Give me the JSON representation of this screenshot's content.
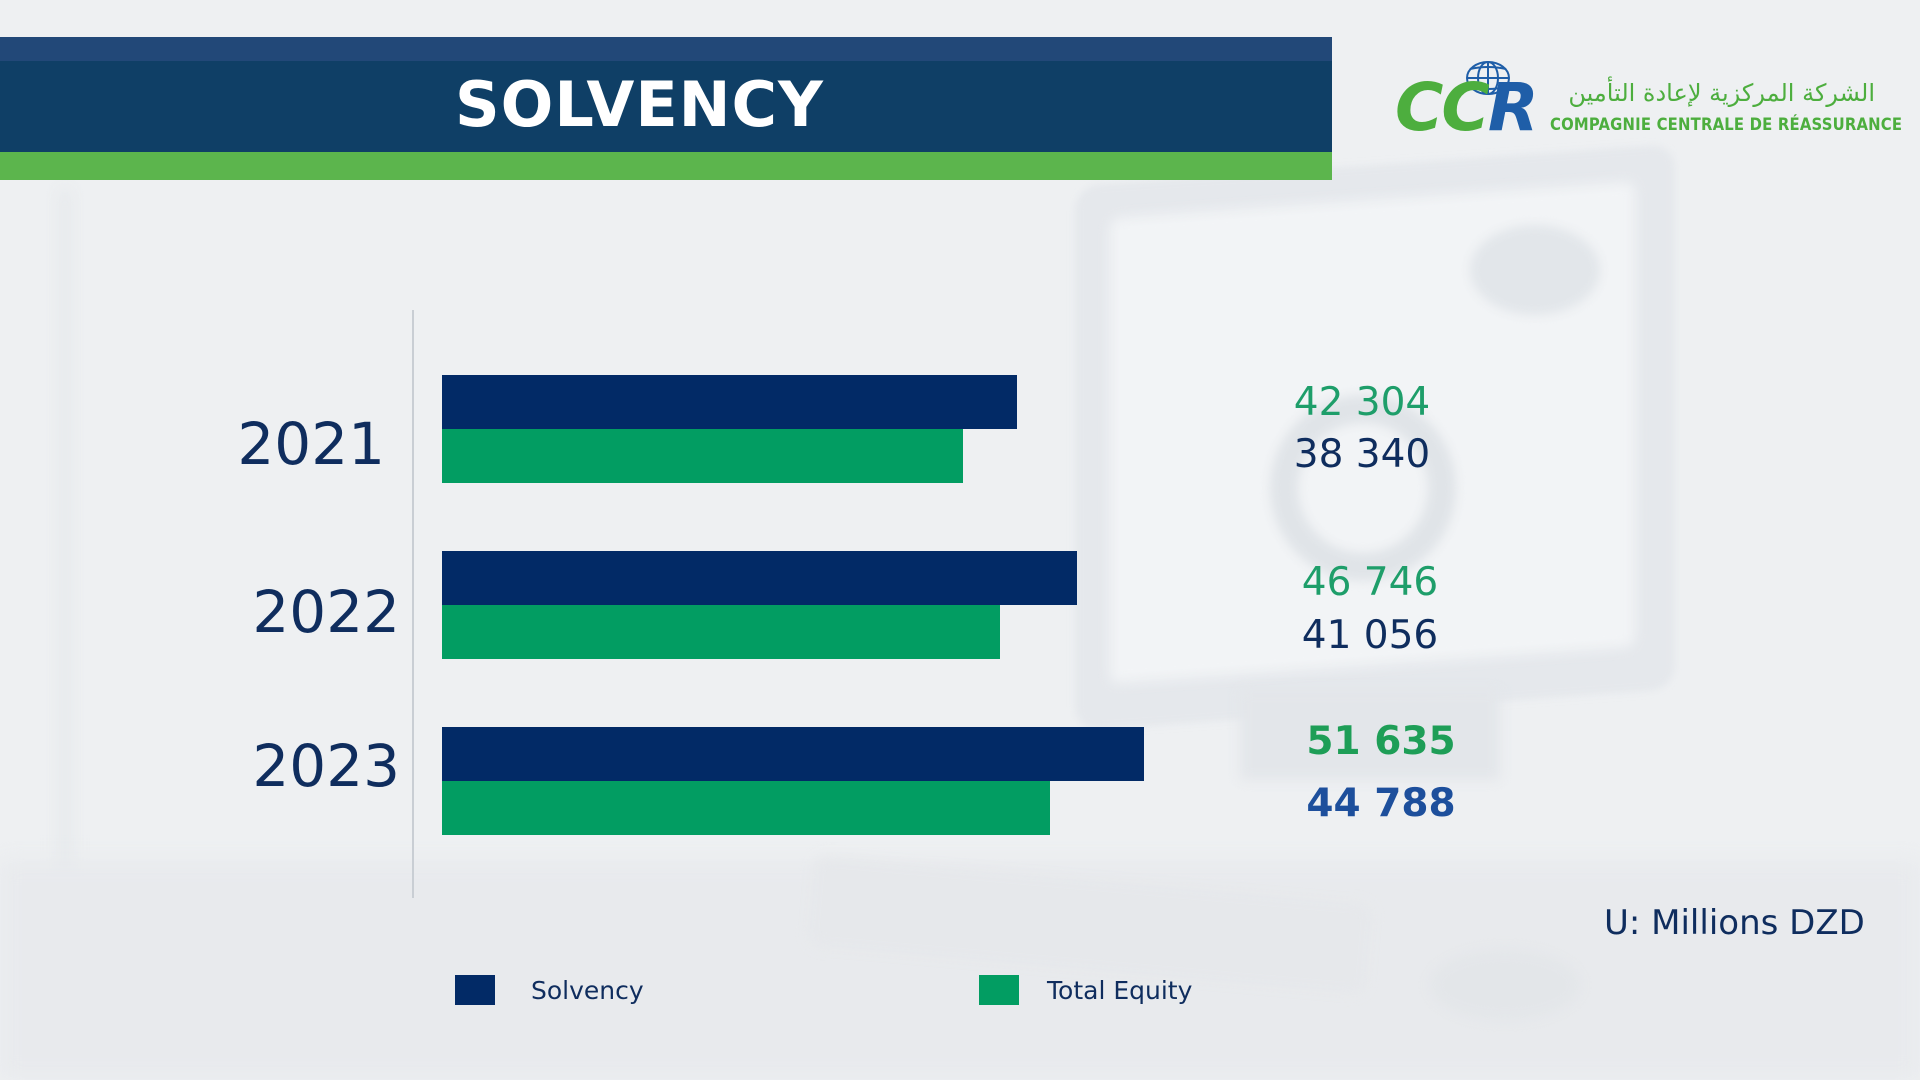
{
  "header": {
    "title": "SOLVENCY",
    "colors": {
      "top_stripe": "#224878",
      "main": "#0f3f66",
      "accent": "#5cb54d"
    }
  },
  "logo": {
    "mark_part1": "CC",
    "mark_part2": "R",
    "arabic": "الشركة المركزية لإعادة التأمين",
    "french": "COMPAGNIE CENTRALE DE RÉASSURANCE",
    "icon": "globe-icon",
    "colors": {
      "green": "#4dae3e",
      "blue": "#1f5ea8"
    }
  },
  "chart_data": {
    "type": "bar",
    "orientation": "horizontal",
    "categories": [
      "2021",
      "2022",
      "2023"
    ],
    "series": [
      {
        "name": "Solvency",
        "color": "#022a66",
        "values": [
          42304,
          46746,
          51635
        ],
        "labels": [
          "42 304",
          "46 746",
          "51 635"
        ]
      },
      {
        "name": "Total Equity",
        "color": "#029d62",
        "values": [
          38340,
          41056,
          44788
        ],
        "labels": [
          "38 340",
          "41 056",
          "44 788"
        ]
      }
    ],
    "highlighted_category": "2023",
    "xlim": [
      0,
      58000
    ],
    "grid": false,
    "legend_position": "bottom",
    "unit_note": "U: Millions DZD"
  }
}
